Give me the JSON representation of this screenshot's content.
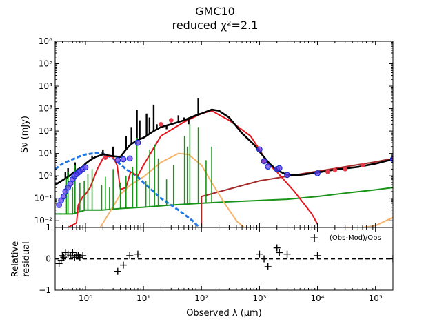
{
  "title_line1": "GMC10",
  "title_line2": "reduced χ²=2.1",
  "xlabel": "Observed λ (μm)",
  "ylabel_top": "Sν (mJy)",
  "ylabel_bottom_line1": "Relative",
  "ylabel_bottom_line2": "residual",
  "legend_residual": "(Obs-Mod)/Obs",
  "legend_marker": "+",
  "colors": {
    "total": "#000000",
    "stellar_attenuated": "#e8141c",
    "stellar_unattenuated": "#1f77e8",
    "dust": "#f7b26b",
    "nebular": "#189418",
    "agn_or_radio": "#a52a2a",
    "radio_power": "#189418",
    "model_flux": "#e83a4a",
    "observed_flux_face": "#6a3df0",
    "observed_flux_edge": "#1530d0"
  },
  "chart_data": [
    {
      "panel": "sed",
      "type": "line",
      "xscale": "log",
      "yscale": "log",
      "xlim": [
        0.3,
        200000
      ],
      "ylim": [
        0.005,
        1000000
      ],
      "yticks": [
        0.01,
        0.1,
        1,
        10,
        100,
        1000,
        10000,
        100000,
        1000000
      ],
      "ytick_labels": [
        "10⁻²",
        "10⁻¹",
        "10⁰",
        "10¹",
        "10²",
        "10³",
        "10⁴",
        "10⁵",
        "10⁶"
      ],
      "series": [
        {
          "name": "stellar attenuated",
          "color_key": "stellar_attenuated",
          "style": "solid",
          "x": [
            0.5,
            0.7,
            0.75,
            0.9,
            1.0,
            1.2,
            1.6,
            2.0,
            2.5,
            3.0,
            3.5,
            4.0,
            5.0,
            6.0,
            8.0,
            10,
            20,
            50,
            100,
            150,
            300,
            700,
            1000,
            1400,
            2000,
            4000,
            8000,
            10000
          ],
          "y": [
            0.005,
            0.008,
            0.05,
            0.12,
            0.15,
            0.3,
            2.0,
            6.0,
            7.5,
            7.0,
            3.0,
            0.25,
            0.3,
            1.5,
            1.0,
            3.0,
            60,
            250,
            600,
            800,
            300,
            60,
            15,
            3.5,
            1.5,
            0.2,
            0.02,
            0.007
          ]
        },
        {
          "name": "stellar unattenuated",
          "color_key": "stellar_unattenuated",
          "style": "dashed",
          "x": [
            0.3,
            0.4,
            0.6,
            0.8,
            1.0,
            1.5,
            2.0,
            3.0,
            5.0,
            8.0,
            10,
            20,
            40,
            70,
            100
          ],
          "y": [
            2.0,
            3.5,
            5.5,
            7.5,
            9.0,
            10.5,
            10.0,
            6.0,
            2.0,
            0.9,
            0.5,
            0.1,
            0.03,
            0.01,
            0.004
          ]
        },
        {
          "name": "dust emission",
          "color_key": "dust",
          "style": "solid",
          "x": [
            1.8,
            2.5,
            4,
            6,
            10,
            20,
            40,
            60,
            100,
            150,
            250,
            400,
            600
          ],
          "y": [
            0.005,
            0.02,
            0.15,
            0.4,
            0.9,
            4,
            10,
            9,
            3,
            0.5,
            0.06,
            0.01,
            0.004
          ]
        },
        {
          "name": "nebular continuum",
          "color_key": "nebular",
          "style": "solid",
          "x": [
            0.3,
            0.6,
            1,
            2,
            4,
            10,
            30,
            100,
            300,
            1000,
            3000,
            10000,
            30000,
            100000,
            200000
          ],
          "y": [
            0.02,
            0.02,
            0.03,
            0.03,
            0.035,
            0.04,
            0.05,
            0.06,
            0.07,
            0.08,
            0.09,
            0.12,
            0.17,
            0.24,
            0.3
          ]
        },
        {
          "name": "radio",
          "color_key": "agn_or_radio",
          "style": "solid",
          "x": [
            100,
            100,
            1000,
            10000,
            100000,
            200000
          ],
          "y": [
            0.005,
            0.12,
            0.6,
            1.6,
            4.2,
            6.0
          ]
        },
        {
          "name": "synchrotron tail",
          "color_key": "dust",
          "style": "solid",
          "x": [
            30000,
            60000,
            100000,
            200000
          ],
          "y": [
            0.005,
            0.005,
            0.006,
            0.014
          ]
        },
        {
          "name": "total model",
          "color_key": "total",
          "style": "solid",
          "x": [
            0.3,
            0.5,
            0.7,
            0.9,
            1.0,
            1.2,
            1.5,
            2.0,
            3.0,
            4.0,
            5.0,
            6.0,
            8.0,
            10,
            15,
            20,
            30,
            50,
            80,
            100,
            150,
            200,
            300,
            500,
            800,
            1000,
            1500,
            2000,
            3000,
            5000,
            10000,
            20000,
            50000,
            100000,
            200000
          ],
          "y": [
            0.4,
            0.9,
            1.8,
            2.6,
            3.5,
            5.0,
            7.0,
            9.0,
            7.5,
            7.0,
            15,
            25,
            40,
            50,
            100,
            150,
            200,
            300,
            500,
            600,
            900,
            800,
            400,
            80,
            25,
            12,
            3.5,
            1.8,
            1.1,
            1.1,
            1.4,
            1.9,
            2.5,
            3.5,
            5.5
          ]
        }
      ],
      "observed_points": {
        "x": [
          0.35,
          0.38,
          0.42,
          0.45,
          0.5,
          0.55,
          0.6,
          0.65,
          0.7,
          0.75,
          0.8,
          0.9,
          1.0,
          3.6,
          4.5,
          5.8,
          8.0,
          1000,
          1200,
          1400,
          2000,
          2200,
          3000,
          10000,
          200000
        ],
        "y": [
          0.05,
          0.08,
          0.12,
          0.2,
          0.3,
          0.45,
          0.7,
          1.0,
          1.2,
          1.4,
          1.6,
          2.0,
          2.4,
          5.0,
          5.5,
          6.0,
          30.0,
          15,
          4.5,
          2.6,
          2.0,
          2.2,
          1.1,
          1.3,
          5.5
        ]
      },
      "model_points": {
        "x": [
          2.2,
          20,
          30,
          1200,
          15000,
          20000,
          30000,
          60000,
          200000
        ],
        "y": [
          6.5,
          200,
          300,
          4.5,
          1.5,
          1.8,
          2.0,
          3.0,
          5.5
        ]
      },
      "spikes": {
        "total_x": [
          0.45,
          0.5,
          0.66,
          1.3,
          2.0,
          3.0,
          5.0,
          6.2,
          7.7,
          8.6,
          11.3,
          12.7,
          15,
          17,
          25,
          33,
          40,
          50,
          60,
          88
        ],
        "total_y": [
          1.5,
          2.2,
          4.0,
          8.0,
          15,
          20,
          60,
          150,
          900,
          300,
          600,
          400,
          1500,
          200,
          120,
          200,
          500,
          400,
          200,
          3000
        ],
        "nebular_x": [
          0.47,
          0.5,
          0.6,
          0.66,
          0.8,
          0.95,
          1.1,
          1.3,
          1.9,
          2.2,
          2.6,
          3.0,
          4.0,
          5.0,
          6.5,
          7.7,
          11,
          12.8,
          15.5,
          18,
          25,
          33,
          51,
          57,
          63,
          88,
          120,
          150
        ],
        "nebular_y": [
          0.8,
          1.5,
          0.3,
          3.0,
          0.5,
          0.6,
          1.2,
          2.0,
          0.4,
          0.9,
          0.3,
          2.0,
          0.5,
          1.0,
          2.5,
          50,
          0.6,
          15,
          25,
          6,
          0.7,
          3.0,
          60,
          20,
          200,
          150,
          5,
          20
        ]
      }
    },
    {
      "panel": "residual",
      "type": "scatter",
      "xscale": "log",
      "ylim": [
        -1,
        1
      ],
      "yticks": [
        -1,
        0,
        1
      ],
      "ytick_labels": [
        "−1",
        "0",
        "1"
      ],
      "xticks": [
        1,
        10,
        100,
        1000,
        10000,
        100000
      ],
      "xtick_labels": [
        "10⁰",
        "10¹",
        "10²",
        "10³",
        "10⁴",
        "10⁵"
      ],
      "x": [
        0.35,
        0.38,
        0.4,
        0.42,
        0.45,
        0.5,
        0.55,
        0.6,
        0.65,
        0.7,
        0.75,
        0.8,
        0.9,
        3.6,
        4.5,
        5.8,
        8.0,
        1000,
        1200,
        1400,
        2000,
        2200,
        3000,
        10000,
        200000
      ],
      "y": [
        -0.15,
        -0.05,
        0.1,
        0.05,
        0.2,
        0.15,
        0.1,
        0.2,
        0.05,
        0.1,
        0.12,
        0.05,
        0.1,
        -0.4,
        -0.2,
        0.1,
        0.15,
        0.15,
        0.0,
        -0.25,
        0.35,
        0.2,
        0.15,
        0.1,
        0.0
      ]
    }
  ]
}
